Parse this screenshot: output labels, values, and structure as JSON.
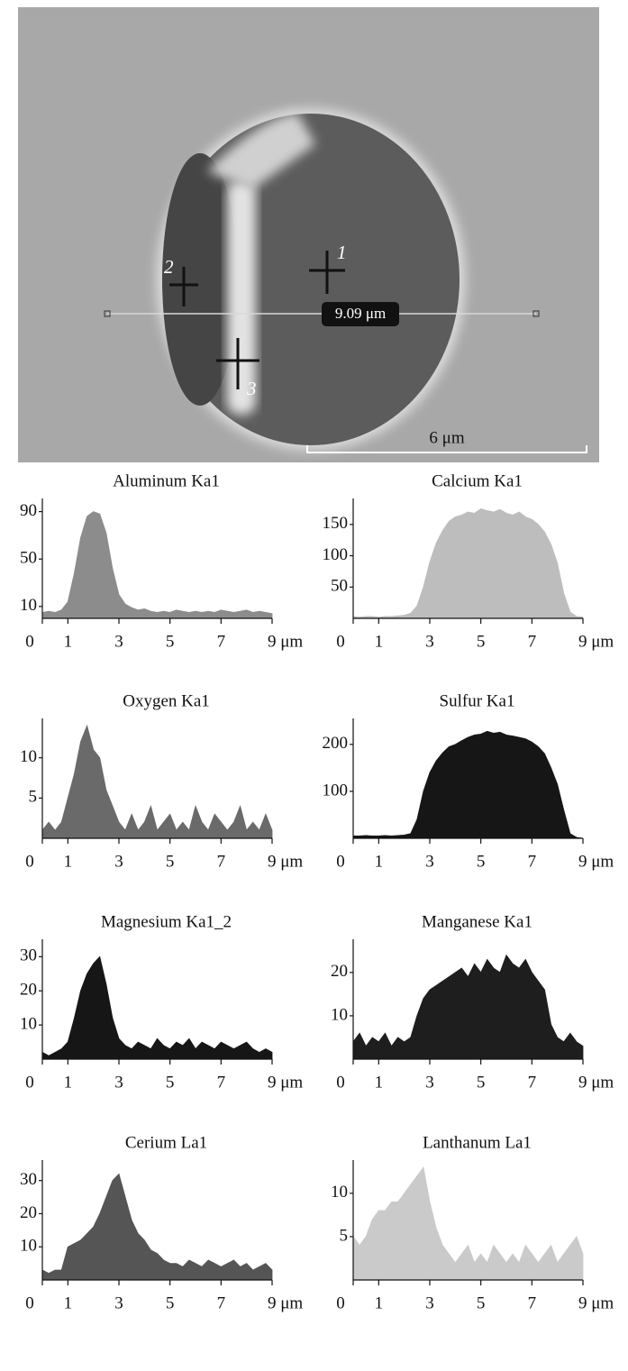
{
  "image": {
    "markers": [
      "1",
      "2",
      "3"
    ],
    "line_label": "9.09 μm",
    "scale_label": "6 μm"
  },
  "chart_data": [
    {
      "type": "area",
      "title": "Aluminum Ka1",
      "color": "#8c8c8c",
      "x": [
        0,
        0.25,
        0.5,
        0.75,
        1,
        1.25,
        1.5,
        1.75,
        2,
        2.25,
        2.5,
        2.75,
        3,
        3.25,
        3.5,
        3.75,
        4,
        4.25,
        4.5,
        4.75,
        5,
        5.25,
        5.5,
        5.75,
        6,
        6.25,
        6.5,
        6.75,
        7,
        7.25,
        7.5,
        7.75,
        8,
        8.25,
        8.5,
        8.75,
        9
      ],
      "values": [
        5,
        6,
        5,
        7,
        14,
        38,
        68,
        86,
        90,
        88,
        72,
        42,
        20,
        12,
        9,
        7,
        8,
        6,
        5,
        6,
        5,
        7,
        6,
        5,
        6,
        5,
        6,
        5,
        7,
        6,
        5,
        6,
        7,
        5,
        6,
        5,
        4
      ],
      "xlim": [
        0,
        9
      ],
      "ylim": [
        0,
        95
      ],
      "xticks": [
        0,
        1,
        3,
        5,
        7,
        {
          "value": 9,
          "label": "9 μm"
        }
      ],
      "yticks": [
        10,
        50,
        90
      ]
    },
    {
      "type": "area",
      "title": "Calcium Ka1",
      "color": "#bdbdbd",
      "x": [
        0,
        0.25,
        0.5,
        0.75,
        1,
        1.25,
        1.5,
        1.75,
        2,
        2.25,
        2.5,
        2.75,
        3,
        3.25,
        3.5,
        3.75,
        4,
        4.25,
        4.5,
        4.75,
        5,
        5.25,
        5.5,
        5.75,
        6,
        6.25,
        6.5,
        6.75,
        7,
        7.25,
        7.5,
        7.75,
        8,
        8.25,
        8.5,
        8.75,
        9
      ],
      "values": [
        3,
        2,
        3,
        3,
        2,
        3,
        3,
        4,
        5,
        8,
        20,
        50,
        90,
        120,
        140,
        155,
        162,
        165,
        170,
        168,
        175,
        172,
        170,
        174,
        168,
        165,
        170,
        162,
        158,
        150,
        138,
        118,
        88,
        40,
        10,
        3,
        2
      ],
      "xlim": [
        0,
        9
      ],
      "ylim": [
        0,
        180
      ],
      "xticks": [
        0,
        1,
        3,
        5,
        7,
        {
          "value": 9,
          "label": "9 μm"
        }
      ],
      "yticks": [
        50,
        100,
        150
      ]
    },
    {
      "type": "area",
      "title": "Oxygen Ka1",
      "color": "#6a6a6a",
      "x": [
        0,
        0.25,
        0.5,
        0.75,
        1,
        1.25,
        1.5,
        1.75,
        2,
        2.25,
        2.5,
        2.75,
        3,
        3.25,
        3.5,
        3.75,
        4,
        4.25,
        4.5,
        4.75,
        5,
        5.25,
        5.5,
        5.75,
        6,
        6.25,
        6.5,
        6.75,
        7,
        7.25,
        7.5,
        7.75,
        8,
        8.25,
        8.5,
        8.75,
        9
      ],
      "values": [
        1,
        2,
        1,
        2,
        5,
        8,
        12,
        14,
        11,
        10,
        6,
        4,
        2,
        1,
        3,
        1,
        2,
        4,
        1,
        2,
        3,
        1,
        2,
        1,
        4,
        2,
        1,
        3,
        2,
        1,
        2,
        4,
        1,
        2,
        1,
        3,
        1
      ],
      "xlim": [
        0,
        9
      ],
      "ylim": [
        0,
        14
      ],
      "xticks": [
        0,
        1,
        3,
        5,
        7,
        {
          "value": 9,
          "label": "9 μm"
        }
      ],
      "yticks": [
        5,
        10
      ]
    },
    {
      "type": "area",
      "title": "Sulfur Ka1",
      "color": "#161616",
      "x": [
        0,
        0.25,
        0.5,
        0.75,
        1,
        1.25,
        1.5,
        1.75,
        2,
        2.25,
        2.5,
        2.75,
        3,
        3.25,
        3.5,
        3.75,
        4,
        4.25,
        4.5,
        4.75,
        5,
        5.25,
        5.5,
        5.75,
        6,
        6.25,
        6.5,
        6.75,
        7,
        7.25,
        7.5,
        7.75,
        8,
        8.25,
        8.5,
        8.75,
        9
      ],
      "values": [
        5,
        5,
        6,
        5,
        5,
        6,
        5,
        6,
        7,
        10,
        40,
        100,
        140,
        165,
        182,
        195,
        200,
        208,
        215,
        220,
        222,
        228,
        224,
        226,
        220,
        218,
        215,
        212,
        205,
        195,
        180,
        150,
        115,
        60,
        10,
        2,
        0
      ],
      "xlim": [
        0,
        9
      ],
      "ylim": [
        0,
        240
      ],
      "xticks": [
        0,
        1,
        3,
        5,
        7,
        {
          "value": 9,
          "label": "9 μm"
        }
      ],
      "yticks": [
        100,
        200
      ]
    },
    {
      "type": "area",
      "title": "Magnesium Ka1_2",
      "color": "#161616",
      "x": [
        0,
        0.25,
        0.5,
        0.75,
        1,
        1.25,
        1.5,
        1.75,
        2,
        2.25,
        2.5,
        2.75,
        3,
        3.25,
        3.5,
        3.75,
        4,
        4.25,
        4.5,
        4.75,
        5,
        5.25,
        5.5,
        5.75,
        6,
        6.25,
        6.5,
        6.75,
        7,
        7.25,
        7.5,
        7.75,
        8,
        8.25,
        8.5,
        8.75,
        9
      ],
      "values": [
        2,
        1,
        2,
        3,
        5,
        12,
        20,
        25,
        28,
        30,
        22,
        12,
        6,
        4,
        3,
        5,
        4,
        3,
        6,
        4,
        3,
        5,
        4,
        6,
        3,
        5,
        4,
        3,
        5,
        4,
        3,
        4,
        5,
        3,
        2,
        3,
        2
      ],
      "xlim": [
        0,
        9
      ],
      "ylim": [
        0,
        33
      ],
      "xticks": [
        0,
        1,
        3,
        5,
        7,
        {
          "value": 9,
          "label": "9 μm"
        }
      ],
      "yticks": [
        10,
        20,
        30
      ]
    },
    {
      "type": "area",
      "title": "Manganese Ka1",
      "color": "#1e1e1e",
      "x": [
        0,
        0.25,
        0.5,
        0.75,
        1,
        1.25,
        1.5,
        1.75,
        2,
        2.25,
        2.5,
        2.75,
        3,
        3.25,
        3.5,
        3.75,
        4,
        4.25,
        4.5,
        4.75,
        5,
        5.25,
        5.5,
        5.75,
        6,
        6.25,
        6.5,
        6.75,
        7,
        7.25,
        7.5,
        7.75,
        8,
        8.25,
        8.5,
        8.75,
        9
      ],
      "values": [
        4,
        6,
        3,
        5,
        4,
        6,
        3,
        5,
        4,
        5,
        10,
        14,
        16,
        17,
        18,
        19,
        20,
        21,
        19,
        22,
        20,
        23,
        21,
        20,
        24,
        22,
        21,
        23,
        20,
        18,
        16,
        8,
        5,
        4,
        6,
        4,
        3
      ],
      "xlim": [
        0,
        9
      ],
      "ylim": [
        0,
        26
      ],
      "xticks": [
        0,
        1,
        3,
        5,
        7,
        {
          "value": 9,
          "label": "9 μm"
        }
      ],
      "yticks": [
        10,
        20
      ]
    },
    {
      "type": "area",
      "title": "Cerium La1",
      "color": "#555555",
      "x": [
        0,
        0.25,
        0.5,
        0.75,
        1,
        1.25,
        1.5,
        1.75,
        2,
        2.25,
        2.5,
        2.75,
        3,
        3.25,
        3.5,
        3.75,
        4,
        4.25,
        4.5,
        4.75,
        5,
        5.25,
        5.5,
        5.75,
        6,
        6.25,
        6.5,
        6.75,
        7,
        7.25,
        7.5,
        7.75,
        8,
        8.25,
        8.5,
        8.75,
        9
      ],
      "values": [
        3,
        2,
        3,
        3,
        10,
        11,
        12,
        14,
        16,
        20,
        25,
        30,
        32,
        25,
        18,
        14,
        12,
        9,
        8,
        6,
        5,
        5,
        4,
        6,
        5,
        4,
        6,
        5,
        4,
        5,
        6,
        4,
        5,
        3,
        4,
        5,
        3
      ],
      "xlim": [
        0,
        9
      ],
      "ylim": [
        0,
        34
      ],
      "xticks": [
        0,
        1,
        3,
        5,
        7,
        {
          "value": 9,
          "label": "9 μm"
        }
      ],
      "yticks": [
        10,
        20,
        30
      ]
    },
    {
      "type": "area",
      "title": "Lanthanum La1",
      "color": "#cacaca",
      "x": [
        0,
        0.25,
        0.5,
        0.75,
        1,
        1.25,
        1.5,
        1.75,
        2,
        2.25,
        2.5,
        2.75,
        3,
        3.25,
        3.5,
        3.75,
        4,
        4.25,
        4.5,
        4.75,
        5,
        5.25,
        5.5,
        5.75,
        6,
        6.25,
        6.5,
        6.75,
        7,
        7.25,
        7.5,
        7.75,
        8,
        8.25,
        8.5,
        8.75,
        9
      ],
      "values": [
        5,
        4,
        5,
        7,
        8,
        8,
        9,
        9,
        10,
        11,
        12,
        13,
        9,
        6,
        4,
        3,
        2,
        3,
        4,
        2,
        3,
        2,
        4,
        3,
        2,
        3,
        2,
        4,
        3,
        2,
        3,
        4,
        2,
        3,
        4,
        5,
        3
      ],
      "xlim": [
        0,
        9
      ],
      "ylim": [
        0,
        13
      ],
      "xticks": [
        0,
        1,
        3,
        5,
        7,
        {
          "value": 9,
          "label": "9 μm"
        }
      ],
      "yticks": [
        5,
        10
      ]
    }
  ]
}
